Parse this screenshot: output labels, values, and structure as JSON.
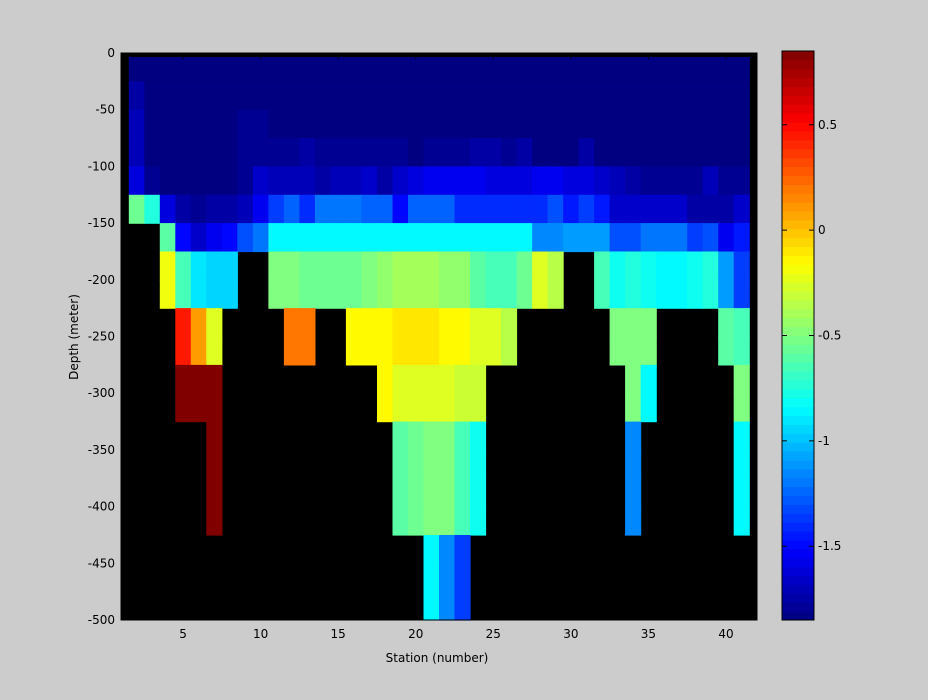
{
  "chart_data": {
    "type": "heatmap",
    "title": "",
    "xlabel": "Station (number)",
    "ylabel": "Depth (meter)",
    "xlim": [
      1,
      42
    ],
    "ylim": [
      -500,
      0
    ],
    "x_ticks": [
      5,
      10,
      15,
      20,
      25,
      30,
      35,
      40
    ],
    "y_ticks": [
      0,
      -50,
      -100,
      -150,
      -200,
      -250,
      -300,
      -350,
      -400,
      -450,
      -500
    ],
    "colorbar": {
      "range": [
        -1.85,
        0.85
      ],
      "colormap": "jet",
      "ticks": [
        0.5,
        0,
        -0.5,
        -1,
        -1.5
      ]
    },
    "background": "#000000",
    "stations": [
      2,
      3,
      4,
      5,
      6,
      7,
      8,
      9,
      10,
      11,
      12,
      13,
      14,
      15,
      16,
      17,
      18,
      19,
      20,
      21,
      22,
      23,
      24,
      25,
      26,
      27,
      28,
      29,
      30,
      31,
      32,
      33,
      34,
      35,
      36,
      37,
      38,
      39,
      40,
      41
    ],
    "depths": [
      -5,
      -25,
      -50,
      -75,
      -100,
      -125,
      -150,
      -175,
      -200,
      -225,
      -250,
      -275,
      -300,
      -325,
      -350,
      -375,
      -400,
      -425,
      -450,
      -475
    ],
    "values": [
      [
        -1.85,
        -1.85,
        -1.85,
        -1.85,
        -1.85,
        -1.85,
        -1.85,
        -1.85,
        -1.85,
        -1.85,
        -1.85,
        -1.85,
        -1.85,
        -1.85,
        -1.85,
        -1.85,
        -1.85,
        -1.85,
        -1.85,
        -1.85,
        -1.85,
        -1.85,
        -1.85,
        -1.85,
        -1.85,
        -1.85,
        -1.85,
        -1.85,
        -1.85,
        -1.85,
        -1.85,
        -1.85,
        -1.85,
        -1.85,
        -1.85,
        -1.85,
        -1.85,
        -1.85,
        -1.85,
        -1.85
      ],
      [
        -1.75,
        -1.85,
        -1.85,
        -1.85,
        -1.85,
        -1.85,
        -1.85,
        -1.85,
        -1.85,
        -1.85,
        -1.85,
        -1.85,
        -1.85,
        -1.85,
        -1.85,
        -1.85,
        -1.85,
        -1.85,
        -1.85,
        -1.85,
        -1.85,
        -1.85,
        -1.85,
        -1.85,
        -1.85,
        -1.85,
        -1.85,
        -1.85,
        -1.85,
        -1.85,
        -1.85,
        -1.85,
        -1.85,
        -1.85,
        -1.85,
        -1.85,
        -1.85,
        -1.85,
        -1.85,
        -1.85
      ],
      [
        -1.7,
        -1.85,
        -1.85,
        -1.85,
        -1.85,
        -1.85,
        -1.85,
        -1.8,
        -1.8,
        -1.85,
        -1.85,
        -1.85,
        -1.85,
        -1.85,
        -1.85,
        -1.85,
        -1.85,
        -1.85,
        -1.85,
        -1.85,
        -1.85,
        -1.85,
        -1.85,
        -1.85,
        -1.85,
        -1.85,
        -1.85,
        -1.85,
        -1.85,
        -1.85,
        -1.85,
        -1.85,
        -1.85,
        -1.85,
        -1.85,
        -1.85,
        -1.85,
        -1.85,
        -1.85,
        -1.85
      ],
      [
        -1.7,
        -1.85,
        -1.85,
        -1.85,
        -1.85,
        -1.85,
        -1.85,
        -1.8,
        -1.8,
        -1.8,
        -1.8,
        -1.75,
        -1.8,
        -1.8,
        -1.8,
        -1.8,
        -1.8,
        -1.8,
        -1.85,
        -1.8,
        -1.8,
        -1.8,
        -1.75,
        -1.75,
        -1.8,
        -1.75,
        -1.85,
        -1.85,
        -1.85,
        -1.75,
        -1.85,
        -1.85,
        -1.85,
        -1.85,
        -1.85,
        -1.85,
        -1.85,
        -1.85,
        -1.85,
        -1.85
      ],
      [
        -1.6,
        -1.8,
        -1.85,
        -1.85,
        -1.85,
        -1.85,
        -1.85,
        -1.8,
        -1.65,
        -1.7,
        -1.7,
        -1.7,
        -1.75,
        -1.7,
        -1.7,
        -1.65,
        -1.75,
        -1.65,
        -1.6,
        -1.55,
        -1.55,
        -1.55,
        -1.55,
        -1.6,
        -1.6,
        -1.6,
        -1.55,
        -1.55,
        -1.6,
        -1.6,
        -1.65,
        -1.7,
        -1.75,
        -1.8,
        -1.8,
        -1.8,
        -1.8,
        -1.7,
        -1.8,
        -1.8
      ],
      [
        -0.55,
        -0.75,
        -1.6,
        -1.75,
        -1.8,
        -1.75,
        -1.75,
        -1.7,
        -1.55,
        -1.35,
        -1.25,
        -1.4,
        -1.2,
        -1.2,
        -1.2,
        -1.25,
        -1.25,
        -1.5,
        -1.25,
        -1.25,
        -1.25,
        -1.4,
        -1.4,
        -1.4,
        -1.4,
        -1.4,
        -1.4,
        -1.3,
        -1.45,
        -1.35,
        -1.45,
        -1.65,
        -1.65,
        -1.65,
        -1.65,
        -1.65,
        -1.75,
        -1.75,
        -1.75,
        -1.65
      ],
      [
        null,
        null,
        -0.6,
        -1.5,
        -1.65,
        -1.55,
        -1.5,
        -1.3,
        -1.2,
        -0.85,
        -0.85,
        -0.85,
        -0.85,
        -0.85,
        -0.85,
        -0.85,
        -0.85,
        -0.85,
        -0.85,
        -0.85,
        -0.85,
        -0.85,
        -0.85,
        -0.85,
        -0.85,
        -0.85,
        -1.15,
        -1.15,
        -1.1,
        -1.1,
        -1.1,
        -1.3,
        -1.3,
        -1.2,
        -1.2,
        -1.2,
        -1.35,
        -1.3,
        -1.55,
        -1.45
      ],
      [
        null,
        null,
        -0.2,
        -0.65,
        -0.9,
        -0.95,
        -0.95,
        null,
        null,
        -0.5,
        -0.5,
        -0.55,
        -0.55,
        -0.55,
        -0.55,
        -0.5,
        -0.45,
        -0.4,
        -0.4,
        -0.4,
        -0.45,
        -0.45,
        -0.6,
        -0.65,
        -0.65,
        -0.55,
        -0.25,
        -0.35,
        null,
        null,
        -0.65,
        -0.8,
        -0.75,
        -0.8,
        -0.85,
        -0.85,
        -0.8,
        -0.75,
        -1.1,
        -1.35
      ],
      [
        null,
        null,
        -0.2,
        -0.65,
        -0.9,
        -0.95,
        -0.95,
        null,
        null,
        -0.5,
        -0.5,
        -0.55,
        -0.55,
        -0.55,
        -0.55,
        -0.5,
        -0.45,
        -0.4,
        -0.4,
        -0.4,
        -0.45,
        -0.45,
        -0.6,
        -0.65,
        -0.65,
        -0.55,
        -0.25,
        -0.35,
        null,
        null,
        -0.65,
        -0.8,
        -0.75,
        -0.8,
        -0.85,
        -0.85,
        -0.8,
        -0.75,
        -1.1,
        -1.35
      ],
      [
        null,
        null,
        null,
        0.45,
        0.1,
        -0.25,
        null,
        null,
        null,
        null,
        0.2,
        0.2,
        null,
        null,
        -0.15,
        -0.15,
        -0.15,
        -0.1,
        -0.1,
        -0.1,
        -0.15,
        -0.15,
        -0.25,
        -0.25,
        -0.35,
        null,
        null,
        null,
        null,
        null,
        null,
        -0.5,
        -0.5,
        -0.5,
        null,
        null,
        null,
        null,
        -0.6,
        -0.65
      ],
      [
        null,
        null,
        null,
        0.45,
        0.1,
        -0.25,
        null,
        null,
        null,
        null,
        0.2,
        0.2,
        null,
        null,
        -0.15,
        -0.15,
        -0.15,
        -0.1,
        -0.1,
        -0.1,
        -0.15,
        -0.15,
        -0.25,
        -0.25,
        -0.35,
        null,
        null,
        null,
        null,
        null,
        null,
        -0.5,
        -0.5,
        -0.5,
        null,
        null,
        null,
        null,
        -0.6,
        -0.65
      ],
      [
        null,
        null,
        null,
        0.85,
        0.85,
        0.85,
        null,
        null,
        null,
        null,
        null,
        null,
        null,
        null,
        null,
        null,
        -0.15,
        -0.25,
        -0.25,
        -0.25,
        -0.25,
        -0.3,
        -0.3,
        null,
        null,
        null,
        null,
        null,
        null,
        null,
        null,
        null,
        -0.5,
        -0.85,
        null,
        null,
        null,
        null,
        null,
        -0.5
      ],
      [
        null,
        null,
        null,
        0.85,
        0.85,
        0.85,
        null,
        null,
        null,
        null,
        null,
        null,
        null,
        null,
        null,
        null,
        -0.15,
        -0.25,
        -0.25,
        -0.25,
        -0.25,
        -0.3,
        -0.3,
        null,
        null,
        null,
        null,
        null,
        null,
        null,
        null,
        null,
        -0.5,
        -0.85,
        null,
        null,
        null,
        null,
        null,
        -0.5
      ],
      [
        null,
        null,
        null,
        null,
        null,
        0.85,
        null,
        null,
        null,
        null,
        null,
        null,
        null,
        null,
        null,
        null,
        null,
        -0.6,
        -0.55,
        -0.5,
        -0.5,
        -0.65,
        -0.8,
        null,
        null,
        null,
        null,
        null,
        null,
        null,
        null,
        null,
        -1.15,
        null,
        null,
        null,
        null,
        null,
        null,
        -0.85
      ],
      [
        null,
        null,
        null,
        null,
        null,
        0.85,
        null,
        null,
        null,
        null,
        null,
        null,
        null,
        null,
        null,
        null,
        null,
        -0.6,
        -0.55,
        -0.5,
        -0.5,
        -0.65,
        -0.8,
        null,
        null,
        null,
        null,
        null,
        null,
        null,
        null,
        null,
        -1.15,
        null,
        null,
        null,
        null,
        null,
        null,
        -0.85
      ],
      [
        null,
        null,
        null,
        null,
        null,
        0.85,
        null,
        null,
        null,
        null,
        null,
        null,
        null,
        null,
        null,
        null,
        null,
        -0.6,
        -0.55,
        -0.5,
        -0.5,
        -0.65,
        -0.8,
        null,
        null,
        null,
        null,
        null,
        null,
        null,
        null,
        null,
        -1.15,
        null,
        null,
        null,
        null,
        null,
        null,
        -0.85
      ],
      [
        null,
        null,
        null,
        null,
        null,
        0.85,
        null,
        null,
        null,
        null,
        null,
        null,
        null,
        null,
        null,
        null,
        null,
        -0.6,
        -0.55,
        -0.5,
        -0.5,
        -0.65,
        -0.8,
        null,
        null,
        null,
        null,
        null,
        null,
        null,
        null,
        null,
        -1.15,
        null,
        null,
        null,
        null,
        null,
        null,
        -0.85
      ],
      [
        null,
        null,
        null,
        null,
        null,
        null,
        null,
        null,
        null,
        null,
        null,
        null,
        null,
        null,
        null,
        null,
        null,
        null,
        null,
        -0.85,
        -1.15,
        -1.35,
        null,
        null,
        null,
        null,
        null,
        null,
        null,
        null,
        null,
        null,
        null,
        null,
        null,
        null,
        null,
        null,
        null,
        null
      ],
      [
        null,
        null,
        null,
        null,
        null,
        null,
        null,
        null,
        null,
        null,
        null,
        null,
        null,
        null,
        null,
        null,
        null,
        null,
        null,
        -0.85,
        -1.15,
        -1.35,
        null,
        null,
        null,
        null,
        null,
        null,
        null,
        null,
        null,
        null,
        null,
        null,
        null,
        null,
        null,
        null,
        null,
        null
      ],
      [
        null,
        null,
        null,
        null,
        null,
        null,
        null,
        null,
        null,
        null,
        null,
        null,
        null,
        null,
        null,
        null,
        null,
        null,
        null,
        -0.85,
        -1.15,
        -1.35,
        null,
        null,
        null,
        null,
        null,
        null,
        null,
        null,
        null,
        null,
        null,
        null,
        null,
        null,
        null,
        null,
        null,
        null
      ]
    ]
  }
}
